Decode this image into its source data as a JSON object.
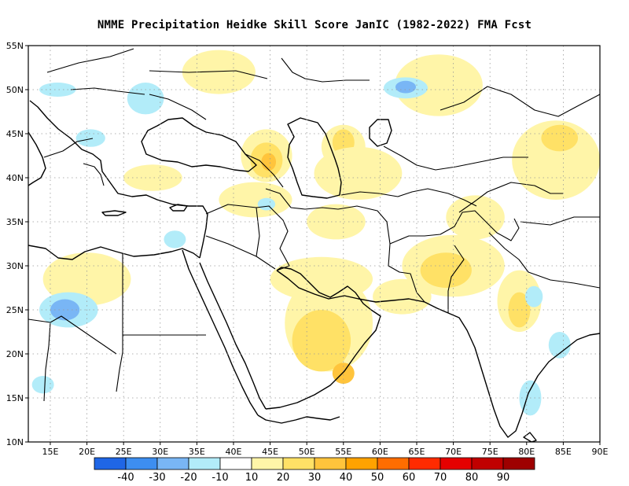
{
  "title": "NMME  Precipitation Heidke Skill Score JanIC (1982-2022) FMA Fcst",
  "map": {
    "lon_range": [
      12,
      90
    ],
    "lat_range": [
      10,
      55
    ],
    "lon_ticks": [
      {
        "value": 15,
        "label": "15E"
      },
      {
        "value": 20,
        "label": "20E"
      },
      {
        "value": 25,
        "label": "25E"
      },
      {
        "value": 30,
        "label": "30E"
      },
      {
        "value": 35,
        "label": "35E"
      },
      {
        "value": 40,
        "label": "40E"
      },
      {
        "value": 45,
        "label": "45E"
      },
      {
        "value": 50,
        "label": "50E"
      },
      {
        "value": 55,
        "label": "55E"
      },
      {
        "value": 60,
        "label": "60E"
      },
      {
        "value": 65,
        "label": "65E"
      },
      {
        "value": 70,
        "label": "70E"
      },
      {
        "value": 75,
        "label": "75E"
      },
      {
        "value": 80,
        "label": "80E"
      },
      {
        "value": 85,
        "label": "85E"
      },
      {
        "value": 90,
        "label": "90E"
      }
    ],
    "lat_ticks": [
      {
        "value": 10,
        "label": "10N"
      },
      {
        "value": 15,
        "label": "15N"
      },
      {
        "value": 20,
        "label": "20N"
      },
      {
        "value": 25,
        "label": "25N"
      },
      {
        "value": 30,
        "label": "30N"
      },
      {
        "value": 35,
        "label": "35N"
      },
      {
        "value": 40,
        "label": "40N"
      },
      {
        "value": 45,
        "label": "45N"
      },
      {
        "value": 50,
        "label": "50N"
      },
      {
        "value": 55,
        "label": "55N"
      }
    ]
  },
  "colorbar": {
    "boundaries": [
      "-40",
      "-30",
      "-20",
      "-10",
      "10",
      "20",
      "30",
      "40",
      "50",
      "60",
      "70",
      "80",
      "90"
    ],
    "colors": [
      "#1f66e6",
      "#3d8ef0",
      "#79b6f5",
      "#b2ecf9",
      "#ffffff",
      "#fff5a8",
      "#ffe166",
      "#ffc43c",
      "#ffa200",
      "#ff6d00",
      "#ff2b00",
      "#e50000",
      "#c00000",
      "#9e0000"
    ]
  },
  "skill_regions": [
    {
      "level": 10,
      "lon": 44.5,
      "lat": 42.5,
      "rx": 3.5,
      "ry": 3.0
    },
    {
      "level": 20,
      "lon": 44.5,
      "lat": 42.0,
      "rx": 2.2,
      "ry": 2.0
    },
    {
      "level": 30,
      "lon": 44.8,
      "lat": 41.8,
      "rx": 1.0,
      "ry": 1.0
    },
    {
      "level": 10,
      "lon": 55.0,
      "lat": 43.5,
      "rx": 3.0,
      "ry": 2.5
    },
    {
      "level": 20,
      "lon": 55.0,
      "lat": 44.0,
      "rx": 1.5,
      "ry": 1.5
    },
    {
      "level": 10,
      "lon": 57.0,
      "lat": 40.5,
      "rx": 6.0,
      "ry": 3.0
    },
    {
      "level": 10,
      "lon": 54.0,
      "lat": 35.0,
      "rx": 4.0,
      "ry": 2.0
    },
    {
      "level": 10,
      "lon": 53.0,
      "lat": 23.5,
      "rx": 6.0,
      "ry": 5.5
    },
    {
      "level": 20,
      "lon": 52.0,
      "lat": 21.5,
      "rx": 4.0,
      "ry": 3.5
    },
    {
      "level": 30,
      "lon": 55.0,
      "lat": 17.8,
      "rx": 1.5,
      "ry": 1.2
    },
    {
      "level": 10,
      "lon": 52.0,
      "lat": 28.5,
      "rx": 7.0,
      "ry": 2.5
    },
    {
      "level": 10,
      "lon": 70.0,
      "lat": 30.0,
      "rx": 7.0,
      "ry": 3.5
    },
    {
      "level": 20,
      "lon": 69.0,
      "lat": 29.5,
      "rx": 3.5,
      "ry": 2.0
    },
    {
      "level": 10,
      "lon": 73.0,
      "lat": 35.5,
      "rx": 4.0,
      "ry": 2.5
    },
    {
      "level": 10,
      "lon": 84.0,
      "lat": 42.0,
      "rx": 6.0,
      "ry": 4.5
    },
    {
      "level": 20,
      "lon": 84.5,
      "lat": 44.5,
      "rx": 2.5,
      "ry": 1.5
    },
    {
      "level": 10,
      "lon": 68.0,
      "lat": 50.5,
      "rx": 6.0,
      "ry": 3.5
    },
    {
      "level": 10,
      "lon": 79.0,
      "lat": 26.0,
      "rx": 3.0,
      "ry": 3.5
    },
    {
      "level": 20,
      "lon": 79.0,
      "lat": 25.0,
      "rx": 1.5,
      "ry": 2.0
    },
    {
      "level": 10,
      "lon": 63.0,
      "lat": 26.5,
      "rx": 4.0,
      "ry": 2.0
    },
    {
      "level": 10,
      "lon": 20.0,
      "lat": 28.5,
      "rx": 6.0,
      "ry": 3.0
    },
    {
      "level": 10,
      "lon": 43.0,
      "lat": 37.5,
      "rx": 5.0,
      "ry": 2.0
    },
    {
      "level": 10,
      "lon": 38.0,
      "lat": 52.0,
      "rx": 5.0,
      "ry": 2.5
    },
    {
      "level": 10,
      "lon": 29.0,
      "lat": 40.0,
      "rx": 4.0,
      "ry": 1.5
    },
    {
      "level": -10,
      "lon": 17.5,
      "lat": 25.0,
      "rx": 4.0,
      "ry": 2.0
    },
    {
      "level": -20,
      "lon": 17.0,
      "lat": 25.0,
      "rx": 2.0,
      "ry": 1.2
    },
    {
      "level": -10,
      "lon": 63.5,
      "lat": 50.2,
      "rx": 3.0,
      "ry": 1.2
    },
    {
      "level": -20,
      "lon": 63.5,
      "lat": 50.3,
      "rx": 1.4,
      "ry": 0.7
    },
    {
      "level": -10,
      "lon": 28.0,
      "lat": 49.0,
      "rx": 2.5,
      "ry": 1.8
    },
    {
      "level": -10,
      "lon": 20.5,
      "lat": 44.5,
      "rx": 2.0,
      "ry": 1.0
    },
    {
      "level": -10,
      "lon": 84.5,
      "lat": 21.0,
      "rx": 1.5,
      "ry": 1.5
    },
    {
      "level": -10,
      "lon": 80.5,
      "lat": 15.0,
      "rx": 1.5,
      "ry": 2.0
    },
    {
      "level": -10,
      "lon": 44.5,
      "lat": 37.0,
      "rx": 1.2,
      "ry": 0.7
    },
    {
      "level": -10,
      "lon": 14.0,
      "lat": 16.5,
      "rx": 1.5,
      "ry": 1.0
    },
    {
      "level": -10,
      "lon": 16.0,
      "lat": 50.0,
      "rx": 2.5,
      "ry": 0.8
    },
    {
      "level": -10,
      "lon": 32.0,
      "lat": 33.0,
      "rx": 1.5,
      "ry": 1.0
    },
    {
      "level": -10,
      "lon": 81.0,
      "lat": 26.5,
      "rx": 1.2,
      "ry": 1.2
    }
  ]
}
